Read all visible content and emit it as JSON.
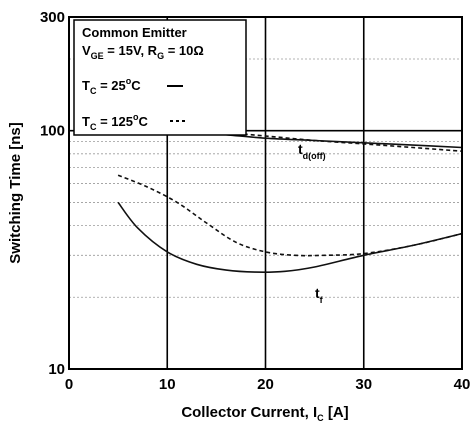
{
  "chart_data": {
    "type": "line",
    "xlabel": "Collector Current, I",
    "xlabel_sub": "C",
    "xlabel_unit": " [A]",
    "ylabel": "Switching Time [ns]",
    "xlim": [
      0,
      40
    ],
    "ylim": [
      10,
      300
    ],
    "y_scale": "log",
    "grid": true,
    "x_ticks": [
      {
        "value": 0,
        "label": "0"
      },
      {
        "value": 10,
        "label": "10"
      },
      {
        "value": 20,
        "label": "20"
      },
      {
        "value": 30,
        "label": "30"
      },
      {
        "value": 40,
        "label": "40"
      }
    ],
    "y_ticks": [
      {
        "value": 10,
        "label": "10"
      },
      {
        "value": 100,
        "label": "100"
      },
      {
        "value": 300,
        "label": "300"
      }
    ],
    "legend": {
      "position": "top-left",
      "title": "Common Emitter",
      "cond_v": "V",
      "cond_v_sub": "GE",
      "cond_v_rest": " = 15V, R",
      "cond_r_sub": "G",
      "cond_r_rest": " = 10Ω",
      "entries": [
        {
          "prefix": "T",
          "sub": "C",
          "eq": " = 25",
          "sup": "o",
          "unit": "C",
          "style": "solid"
        },
        {
          "prefix": "T",
          "sub": "C",
          "eq": " = 125",
          "sup": "o",
          "unit": "C",
          "style": "dashed"
        }
      ]
    },
    "curve_labels": [
      {
        "text": "t",
        "sub": "d(off)"
      },
      {
        "text": "t",
        "sub": "f"
      }
    ],
    "series": [
      {
        "curve": "td(off)",
        "condition": "TC = 25oC",
        "style": "solid",
        "x": [
          5,
          10,
          15,
          20,
          25,
          30,
          35,
          40
        ],
        "y": [
          104,
          100,
          97,
          93,
          91,
          89,
          87,
          85
        ]
      },
      {
        "curve": "td(off)",
        "condition": "TC = 125oC",
        "style": "dashed",
        "x": [
          5,
          10,
          15,
          20,
          25,
          30,
          35,
          40
        ],
        "y": [
          106,
          103,
          99,
          95,
          91,
          88,
          85,
          82
        ]
      },
      {
        "curve": "tf",
        "condition": "TC = 25oC",
        "style": "solid",
        "x": [
          5,
          7,
          10,
          13,
          16,
          19,
          22,
          25,
          30,
          35,
          40
        ],
        "y": [
          50,
          39,
          31,
          27.5,
          26,
          25.5,
          25.7,
          26.8,
          30,
          33,
          37
        ]
      },
      {
        "curve": "tf",
        "condition": "TC = 125oC",
        "style": "dashed",
        "x": [
          5,
          8,
          11,
          14,
          17,
          20,
          23,
          26,
          30,
          35,
          40
        ],
        "y": [
          65,
          58,
          50,
          41,
          34,
          31,
          30,
          30,
          30.5,
          33,
          37
        ]
      }
    ]
  }
}
